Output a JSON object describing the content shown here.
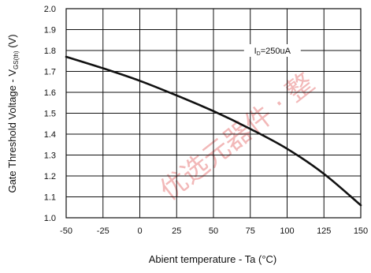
{
  "chart_data": {
    "type": "line",
    "xlabel": "Abient temperature - Ta (°C)",
    "ylabel": {
      "text": "Gate Threshold Voltage - V",
      "sub": "GS(th)",
      "suffix": " (V)"
    },
    "xlim": [
      -50,
      150
    ],
    "ylim": [
      1.0,
      2.0
    ],
    "xticks": [
      -50,
      -25,
      0,
      25,
      50,
      75,
      100,
      125,
      150
    ],
    "yticks": [
      "1.0",
      "1.1",
      "1.2",
      "1.3",
      "1.4",
      "1.5",
      "1.6",
      "1.7",
      "1.8",
      "1.9",
      "2.0"
    ],
    "grid": true,
    "annotation": {
      "text": "I",
      "sub": "D",
      "suffix": "=250uA",
      "x": 90,
      "y": 1.8
    },
    "series": [
      {
        "x": [
          -50,
          -25,
          0,
          25,
          50,
          75,
          100,
          125,
          150
        ],
        "y": [
          1.77,
          1.715,
          1.655,
          1.585,
          1.51,
          1.425,
          1.33,
          1.21,
          1.06
        ]
      }
    ],
    "colors": {
      "line": "#111111",
      "grid": "#111111",
      "watermark": "#f2b8b8"
    }
  },
  "watermark": {
    "text": "优选元器件 · 整",
    "kind": "watermark"
  }
}
